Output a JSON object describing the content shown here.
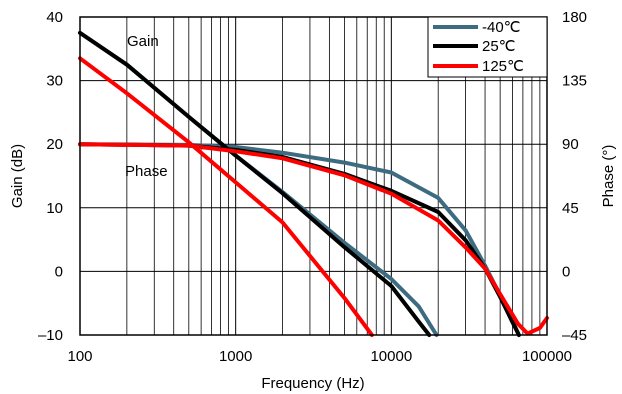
{
  "chart_data": {
    "type": "line",
    "xlabel": "Frequency (Hz)",
    "ylabel": "Gain (dB)",
    "y2label": "Phase (°)",
    "x_scale": "log",
    "xlim": [
      100,
      100000
    ],
    "ylim": [
      -10,
      40
    ],
    "y2lim": [
      -45,
      180
    ],
    "x_ticks": [
      "100",
      "1000",
      "10000",
      "100000"
    ],
    "y_ticks": [
      "–10",
      "0",
      "10",
      "20",
      "30",
      "40"
    ],
    "y2_ticks": [
      "–45",
      "0",
      "45",
      "90",
      "135",
      "180"
    ],
    "grid": "x-log minor and major vertical lines, horizontal lines at y ticks",
    "legend_position": "top-right",
    "annotations": [
      "Gain",
      "Phase"
    ],
    "series": [
      {
        "name": "-40℃",
        "color": "#3d6b80",
        "gain": {
          "x": [
            100,
            200,
            500,
            1000,
            2000,
            5000,
            10000,
            15000,
            19500
          ],
          "y": [
            37.5,
            32.5,
            24.3,
            18.2,
            12.5,
            4.5,
            -1.2,
            -5.5,
            -10
          ]
        },
        "phase": {
          "x": [
            100,
            500,
            1000,
            2000,
            5000,
            10000,
            20000,
            30000,
            40000,
            50000,
            60000,
            66000
          ],
          "y": [
            90,
            89.5,
            88,
            84,
            77,
            70,
            52,
            29,
            4,
            -17,
            -35,
            -45
          ]
        }
      },
      {
        "name": "25℃",
        "color": "#000000",
        "gain": {
          "x": [
            100,
            200,
            500,
            1000,
            2000,
            5000,
            10000,
            15000,
            17500
          ],
          "y": [
            37.5,
            32.5,
            24.3,
            18.2,
            12.3,
            3.8,
            -2.3,
            -7.9,
            -10
          ]
        },
        "phase": {
          "x": [
            100,
            500,
            1000,
            2000,
            5000,
            10000,
            20000,
            30000,
            40000,
            50000,
            60000,
            66000
          ],
          "y": [
            90,
            89,
            86,
            81,
            69,
            57,
            42,
            22,
            2,
            -18,
            -36,
            -45
          ]
        }
      },
      {
        "name": "125℃",
        "color": "#ff0000",
        "gain": {
          "x": [
            100,
            200,
            500,
            1000,
            2000,
            5000,
            7500
          ],
          "y": [
            33.5,
            28,
            20.3,
            14,
            7.7,
            -4.2,
            -10
          ]
        },
        "phase": {
          "x": [
            100,
            500,
            1000,
            2000,
            5000,
            10000,
            20000,
            30000,
            40000,
            50000,
            65000,
            75000,
            90000,
            100000
          ],
          "y": [
            90,
            89,
            85,
            80,
            68,
            55,
            36,
            17,
            2,
            -16,
            -37,
            -44,
            -40,
            -33
          ]
        }
      }
    ]
  }
}
